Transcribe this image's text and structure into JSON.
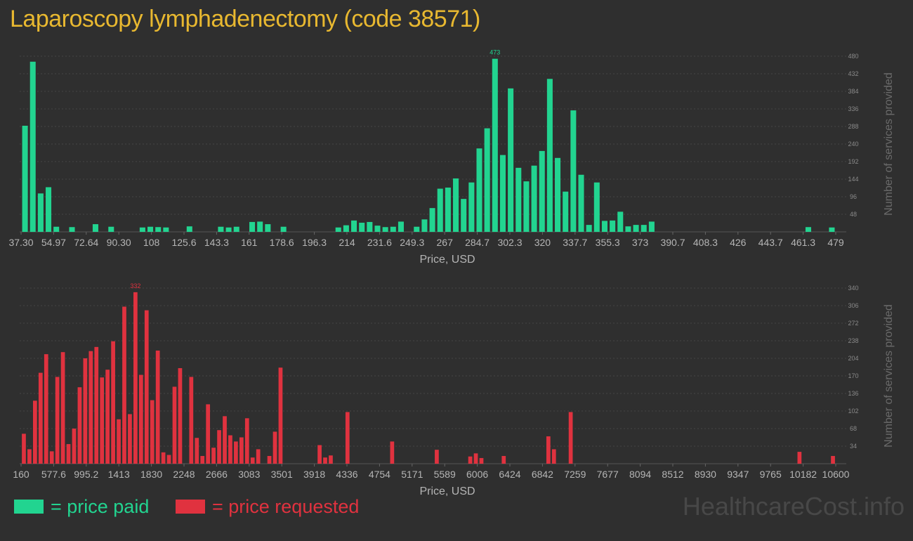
{
  "title": "Laparoscopy lymphadenectomy (code 38571)",
  "watermark": "HealthcareCost.info",
  "legend": {
    "paid_label": "= price paid",
    "requested_label": "= price requested",
    "paid_color": "#22d490",
    "requested_color": "#e0323f"
  },
  "chart_data": [
    {
      "type": "bar",
      "name": "paid",
      "xlabel": "Price, USD",
      "ylabel": "Number of services provided",
      "color": "#22d490",
      "ylim": [
        0,
        480
      ],
      "yticks": [
        48,
        96,
        144,
        192,
        240,
        288,
        336,
        384,
        432,
        480
      ],
      "xticklabels": [
        "37.30",
        "54.97",
        "72.64",
        "90.30",
        "108",
        "125.6",
        "143.3",
        "161",
        "178.6",
        "196.3",
        "214",
        "231.6",
        "249.3",
        "267",
        "284.7",
        "302.3",
        "320",
        "337.7",
        "355.3",
        "373",
        "390.7",
        "408.3",
        "426",
        "443.7",
        "461.3",
        "479"
      ],
      "peak_label": "473",
      "values": [
        290,
        465,
        105,
        122,
        14,
        0,
        13,
        0,
        0,
        21,
        0,
        14,
        0,
        0,
        0,
        12,
        14,
        13,
        12,
        0,
        0,
        15,
        0,
        0,
        0,
        14,
        12,
        14,
        0,
        27,
        28,
        21,
        0,
        14,
        0,
        0,
        0,
        0,
        0,
        0,
        12,
        18,
        31,
        25,
        27,
        17,
        13,
        14,
        28,
        0,
        14,
        34,
        65,
        118,
        121,
        146,
        90,
        135,
        228,
        283,
        473,
        210,
        392,
        175,
        138,
        181,
        221,
        418,
        202,
        110,
        332,
        156,
        19,
        135,
        30,
        31,
        55,
        15,
        19,
        19,
        28,
        0,
        0,
        0,
        0,
        0,
        0,
        0,
        0,
        0,
        0,
        0,
        0,
        0,
        0,
        0,
        0,
        0,
        0,
        0,
        13,
        0,
        0,
        12
      ]
    },
    {
      "type": "bar",
      "name": "requested",
      "xlabel": "Price, USD",
      "ylabel": "Number of services provided",
      "color": "#e0323f",
      "ylim": [
        0,
        340
      ],
      "yticks": [
        34,
        68,
        102,
        136,
        170,
        204,
        238,
        272,
        306,
        340
      ],
      "xticklabels": [
        "160",
        "577.6",
        "995.2",
        "1413",
        "1830",
        "2248",
        "2666",
        "3083",
        "3501",
        "3918",
        "4336",
        "4754",
        "5171",
        "5589",
        "6006",
        "6424",
        "6842",
        "7259",
        "7677",
        "8094",
        "8512",
        "8930",
        "9347",
        "9765",
        "10182",
        "10600"
      ],
      "peak_label": "332",
      "values": [
        58,
        28,
        122,
        176,
        212,
        24,
        168,
        216,
        38,
        68,
        148,
        204,
        218,
        226,
        167,
        182,
        237,
        86,
        304,
        96,
        332,
        172,
        297,
        123,
        219,
        22,
        17,
        149,
        185,
        0,
        168,
        50,
        15,
        115,
        31,
        65,
        92,
        55,
        43,
        51,
        88,
        12,
        28,
        0,
        15,
        62,
        186,
        0,
        0,
        0,
        0,
        0,
        0,
        36,
        12,
        16,
        0,
        0,
        100,
        0,
        0,
        0,
        0,
        0,
        0,
        0,
        43,
        0,
        0,
        0,
        0,
        0,
        0,
        0,
        27,
        0,
        0,
        0,
        0,
        0,
        14,
        20,
        11,
        0,
        0,
        0,
        15,
        0,
        0,
        0,
        0,
        0,
        0,
        0,
        53,
        28,
        0,
        0,
        100,
        0,
        0,
        0,
        0,
        0,
        0,
        0,
        0,
        0,
        0,
        0,
        0,
        0,
        0,
        0,
        0,
        0,
        0,
        0,
        0,
        0,
        0,
        0,
        0,
        0,
        0,
        0,
        0,
        0,
        0,
        0,
        0,
        0,
        0,
        0,
        0,
        0,
        0,
        0,
        0,
        23,
        0,
        0,
        0,
        0,
        0,
        15
      ]
    }
  ]
}
